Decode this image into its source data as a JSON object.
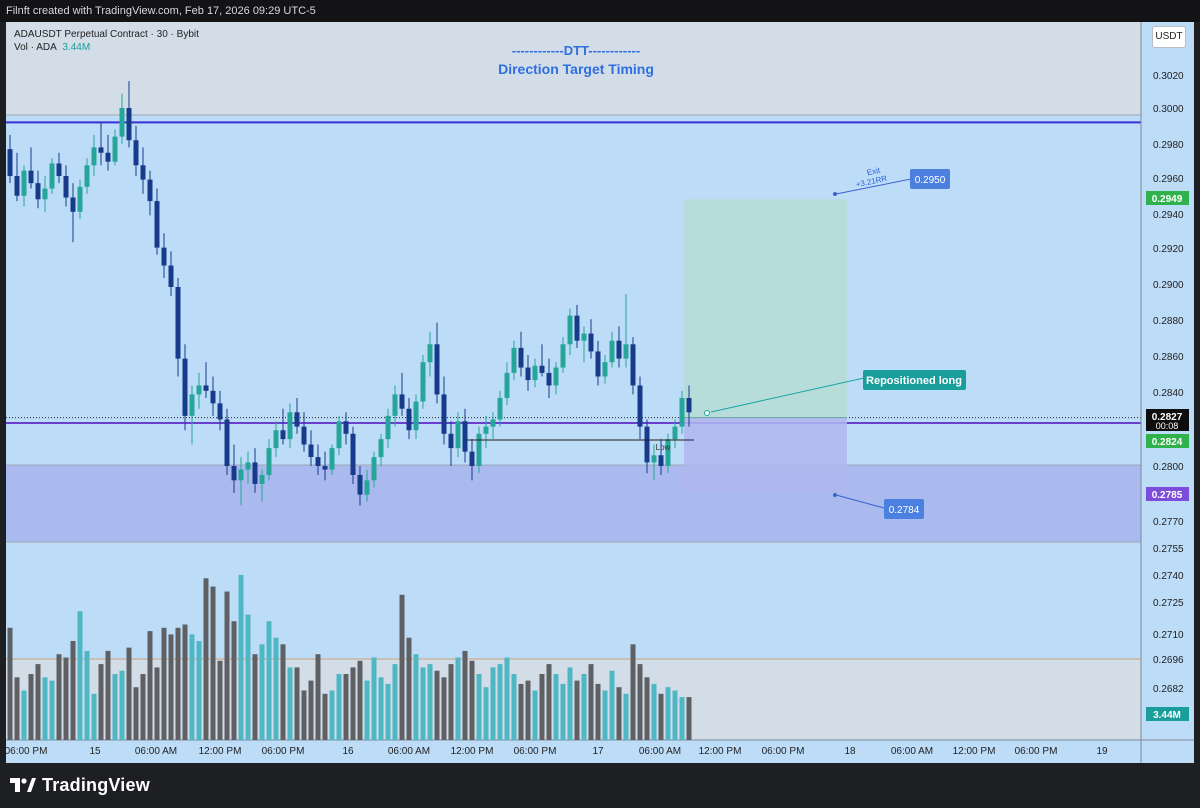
{
  "header": {
    "credit": "Filnft created with TradingView.com, Feb 17, 2026 09:29 UTC-5"
  },
  "legend": {
    "symbol": "ADAUSDT Perpetual Contract · 30 · Bybit",
    "vol_label": "Vol · ADA",
    "vol_value": "3.44M"
  },
  "title": {
    "line1": "------------DTT------------",
    "line2": "Direction Target Timing"
  },
  "currency_button": "USDT",
  "footer": {
    "brand": "TradingView"
  },
  "chart_data": {
    "type": "candlestick",
    "symbol": "ADAUSDT Perpetual Contract",
    "interval": "30",
    "exchange": "Bybit",
    "y_ticks": [
      "0.3020",
      "0.3000",
      "0.2980",
      "0.2960",
      "0.2940",
      "0.2920",
      "0.2900",
      "0.2880",
      "0.2860",
      "0.2840",
      "0.2800",
      "0.2770",
      "0.2755",
      "0.2740",
      "0.2725",
      "0.2710",
      "0.2696",
      "0.2682"
    ],
    "x_ticks": [
      "06:00 PM",
      "15",
      "06:00 AM",
      "12:00 PM",
      "06:00 PM",
      "16",
      "06:00 AM",
      "12:00 PM",
      "06:00 PM",
      "17",
      "06:00 AM",
      "12:00 PM",
      "06:00 PM",
      "18",
      "06:00 AM",
      "12:00 PM",
      "06:00 PM",
      "19"
    ],
    "price_labels": [
      {
        "text": "0.2949",
        "color": "#2fb24c"
      },
      {
        "text": "0.2827",
        "sub": "00:08",
        "color": "#0d0d0d"
      },
      {
        "text": "0.2824",
        "color": "#2fb24c"
      },
      {
        "text": "0.2785",
        "color": "#7c4ddb"
      },
      {
        "text": "3.44M",
        "color": "#1a9e9b"
      }
    ],
    "annotations": {
      "exit_label": "Exit",
      "exit_rr": "+3.21RR",
      "target_price": "0.2950",
      "stop_price": "0.2784",
      "position_label": "Repositioned long",
      "low_label": "Low"
    },
    "levels": {
      "resistance": 0.2992,
      "support": 0.2824,
      "target": 0.2949,
      "stop": 0.2785,
      "entry": 0.2827
    },
    "candle_colors": {
      "up": "#26a69a",
      "down": "#173b8a"
    },
    "volume_colors": {
      "up": "#4fb7c3",
      "down": "#5f6064"
    },
    "candles": [
      [
        0.2977,
        0.2985,
        0.2958,
        0.2962
      ],
      [
        0.2962,
        0.2975,
        0.2948,
        0.2951
      ],
      [
        0.2951,
        0.2968,
        0.2945,
        0.2965
      ],
      [
        0.2965,
        0.2978,
        0.2955,
        0.2958
      ],
      [
        0.2958,
        0.2965,
        0.2944,
        0.2949
      ],
      [
        0.2949,
        0.2962,
        0.2942,
        0.2955
      ],
      [
        0.2955,
        0.2972,
        0.2952,
        0.2969
      ],
      [
        0.2969,
        0.2975,
        0.2958,
        0.2962
      ],
      [
        0.2962,
        0.2968,
        0.2945,
        0.295
      ],
      [
        0.295,
        0.2958,
        0.2925,
        0.2942
      ],
      [
        0.2942,
        0.296,
        0.2938,
        0.2956
      ],
      [
        0.2956,
        0.2972,
        0.2952,
        0.2968
      ],
      [
        0.2968,
        0.2985,
        0.2962,
        0.2978
      ],
      [
        0.2978,
        0.2992,
        0.2968,
        0.2975
      ],
      [
        0.2975,
        0.2985,
        0.2965,
        0.297
      ],
      [
        0.297,
        0.2988,
        0.2968,
        0.2984
      ],
      [
        0.2984,
        0.3008,
        0.298,
        0.3
      ],
      [
        0.3,
        0.3015,
        0.2978,
        0.2982
      ],
      [
        0.2982,
        0.299,
        0.2962,
        0.2968
      ],
      [
        0.2968,
        0.2978,
        0.2952,
        0.296
      ],
      [
        0.296,
        0.2965,
        0.294,
        0.2948
      ],
      [
        0.2948,
        0.2955,
        0.2918,
        0.2922
      ],
      [
        0.2922,
        0.293,
        0.2905,
        0.2912
      ],
      [
        0.2912,
        0.292,
        0.2895,
        0.29
      ],
      [
        0.29,
        0.2905,
        0.285,
        0.286
      ],
      [
        0.286,
        0.2868,
        0.282,
        0.2828
      ],
      [
        0.2828,
        0.2845,
        0.2812,
        0.284
      ],
      [
        0.284,
        0.2852,
        0.2832,
        0.2845
      ],
      [
        0.2845,
        0.2858,
        0.2838,
        0.2842
      ],
      [
        0.2842,
        0.285,
        0.2828,
        0.2835
      ],
      [
        0.2835,
        0.2842,
        0.282,
        0.2826
      ],
      [
        0.2826,
        0.2832,
        0.2795,
        0.28
      ],
      [
        0.28,
        0.2812,
        0.2785,
        0.2792
      ],
      [
        0.2792,
        0.2805,
        0.2778,
        0.2798
      ],
      [
        0.2798,
        0.2808,
        0.279,
        0.2802
      ],
      [
        0.2802,
        0.281,
        0.2785,
        0.279
      ],
      [
        0.279,
        0.2798,
        0.278,
        0.2795
      ],
      [
        0.2795,
        0.2815,
        0.2792,
        0.281
      ],
      [
        0.281,
        0.2825,
        0.2805,
        0.282
      ],
      [
        0.282,
        0.2832,
        0.2812,
        0.2815
      ],
      [
        0.2815,
        0.2835,
        0.281,
        0.283
      ],
      [
        0.283,
        0.2838,
        0.2818,
        0.2822
      ],
      [
        0.2822,
        0.283,
        0.2808,
        0.2812
      ],
      [
        0.2812,
        0.282,
        0.28,
        0.2805
      ],
      [
        0.2805,
        0.2812,
        0.2795,
        0.28
      ],
      [
        0.28,
        0.2808,
        0.2792,
        0.2798
      ],
      [
        0.2798,
        0.2812,
        0.2795,
        0.281
      ],
      [
        0.281,
        0.2828,
        0.2806,
        0.2825
      ],
      [
        0.2825,
        0.283,
        0.2812,
        0.2818
      ],
      [
        0.2818,
        0.2822,
        0.279,
        0.2795
      ],
      [
        0.2795,
        0.28,
        0.2778,
        0.2784
      ],
      [
        0.2784,
        0.2798,
        0.278,
        0.2792
      ],
      [
        0.2792,
        0.2808,
        0.2788,
        0.2805
      ],
      [
        0.2805,
        0.2818,
        0.28,
        0.2815
      ],
      [
        0.2815,
        0.2832,
        0.281,
        0.2828
      ],
      [
        0.2828,
        0.2845,
        0.2822,
        0.284
      ],
      [
        0.284,
        0.2852,
        0.2828,
        0.2832
      ],
      [
        0.2832,
        0.2838,
        0.2815,
        0.282
      ],
      [
        0.282,
        0.284,
        0.2815,
        0.2836
      ],
      [
        0.2836,
        0.2862,
        0.2832,
        0.2858
      ],
      [
        0.2858,
        0.2875,
        0.285,
        0.2868
      ],
      [
        0.2868,
        0.288,
        0.2835,
        0.284
      ],
      [
        0.284,
        0.285,
        0.2812,
        0.2818
      ],
      [
        0.2818,
        0.2825,
        0.28,
        0.281
      ],
      [
        0.281,
        0.283,
        0.2805,
        0.2825
      ],
      [
        0.2825,
        0.2832,
        0.2802,
        0.2808
      ],
      [
        0.2808,
        0.2815,
        0.2792,
        0.28
      ],
      [
        0.28,
        0.2822,
        0.2796,
        0.2818
      ],
      [
        0.2818,
        0.2828,
        0.281,
        0.2822
      ],
      [
        0.2822,
        0.283,
        0.2815,
        0.2826
      ],
      [
        0.2826,
        0.2842,
        0.2822,
        0.2838
      ],
      [
        0.2838,
        0.2858,
        0.2834,
        0.2852
      ],
      [
        0.2852,
        0.287,
        0.2848,
        0.2866
      ],
      [
        0.2866,
        0.2875,
        0.285,
        0.2855
      ],
      [
        0.2855,
        0.2862,
        0.2842,
        0.2848
      ],
      [
        0.2848,
        0.286,
        0.2844,
        0.2856
      ],
      [
        0.2856,
        0.2868,
        0.285,
        0.2852
      ],
      [
        0.2852,
        0.286,
        0.2838,
        0.2845
      ],
      [
        0.2845,
        0.2858,
        0.284,
        0.2855
      ],
      [
        0.2855,
        0.2872,
        0.2852,
        0.2868
      ],
      [
        0.2868,
        0.2888,
        0.2862,
        0.2884
      ],
      [
        0.2884,
        0.289,
        0.2866,
        0.287
      ],
      [
        0.287,
        0.2878,
        0.2858,
        0.2874
      ],
      [
        0.2874,
        0.2882,
        0.286,
        0.2864
      ],
      [
        0.2864,
        0.287,
        0.2845,
        0.285
      ],
      [
        0.285,
        0.2862,
        0.2846,
        0.2858
      ],
      [
        0.2858,
        0.2875,
        0.2855,
        0.287
      ],
      [
        0.287,
        0.2878,
        0.2855,
        0.286
      ],
      [
        0.286,
        0.2896,
        0.2855,
        0.2868
      ],
      [
        0.2868,
        0.2872,
        0.284,
        0.2845
      ],
      [
        0.2845,
        0.285,
        0.2815,
        0.2822
      ],
      [
        0.2822,
        0.2826,
        0.2796,
        0.2802
      ],
      [
        0.2802,
        0.2812,
        0.2792,
        0.2806
      ],
      [
        0.2806,
        0.2815,
        0.2795,
        0.28
      ],
      [
        0.28,
        0.2818,
        0.2796,
        0.2815
      ],
      [
        0.2815,
        0.2826,
        0.281,
        0.2822
      ],
      [
        0.2822,
        0.2842,
        0.2818,
        0.2838
      ],
      [
        0.2838,
        0.2845,
        0.2822,
        0.283
      ]
    ],
    "volumes": [
      68,
      38,
      30,
      40,
      46,
      38,
      36,
      52,
      50,
      60,
      78,
      54,
      28,
      46,
      54,
      40,
      42,
      56,
      32,
      40,
      66,
      44,
      68,
      64,
      68,
      70,
      64,
      60,
      98,
      93,
      48,
      90,
      72,
      100,
      76,
      52,
      58,
      72,
      62,
      58,
      44,
      44,
      30,
      36,
      52,
      28,
      30,
      40,
      40,
      44,
      48,
      36,
      50,
      38,
      34,
      46,
      88,
      62,
      52,
      44,
      46,
      42,
      38,
      46,
      50,
      54,
      48,
      40,
      32,
      44,
      46,
      50,
      40,
      34,
      36,
      30,
      40,
      46,
      40,
      34,
      44,
      36,
      40,
      46,
      34,
      30,
      42,
      32,
      28,
      58,
      46,
      38,
      34,
      28,
      32,
      30,
      26,
      26
    ]
  }
}
